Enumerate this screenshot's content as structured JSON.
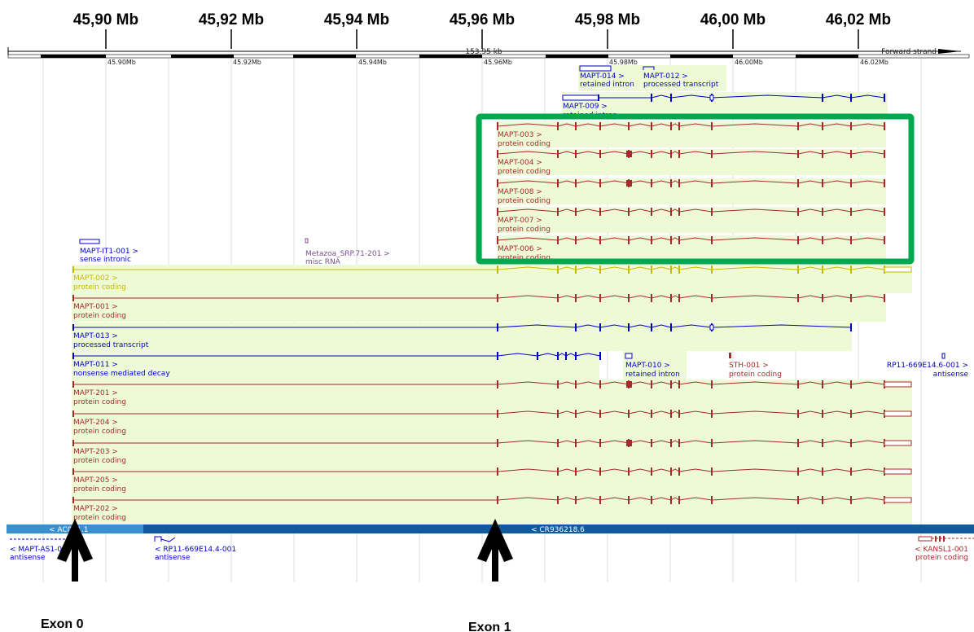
{
  "top_axis": {
    "labels": [
      "45,90 Mb",
      "45,92 Mb",
      "45,94 Mb",
      "45,96 Mb",
      "45,98 Mb",
      "46,00 Mb",
      "46,02 Mb"
    ]
  },
  "ruler": {
    "span_label": "153.95 kb",
    "strand_label": "Forward strand",
    "tick_labels": [
      "45.90Mb",
      "45.92Mb",
      "45.94Mb",
      "45.96Mb",
      "45.98Mb",
      "46.00Mb",
      "46.02Mb"
    ]
  },
  "colors": {
    "coding": "#a52a2a",
    "processed": "#0000cc",
    "yellow": "#c9b800",
    "purple": "#7a4f8f",
    "band_bg": "#eefad6",
    "contig": "#0f5a9e",
    "highlight": "#00a84f"
  },
  "transcripts": [
    {
      "id": "MAPT-014",
      "name": "MAPT-014 >",
      "biotype": "retained intron"
    },
    {
      "id": "MAPT-012",
      "name": "MAPT-012 >",
      "biotype": "processed transcript"
    },
    {
      "id": "MAPT-009",
      "name": "MAPT-009 >",
      "biotype": "retained intron"
    },
    {
      "id": "MAPT-003",
      "name": "MAPT-003 >",
      "biotype": "protein coding"
    },
    {
      "id": "MAPT-004",
      "name": "MAPT-004 >",
      "biotype": "protein coding"
    },
    {
      "id": "MAPT-008",
      "name": "MAPT-008 >",
      "biotype": "protein coding"
    },
    {
      "id": "MAPT-007",
      "name": "MAPT-007 >",
      "biotype": "protein coding"
    },
    {
      "id": "MAPT-006",
      "name": "MAPT-006 >",
      "biotype": "protein coding"
    },
    {
      "id": "MAPT-IT1-001",
      "name": "MAPT-IT1-001 >",
      "biotype": "sense intronic"
    },
    {
      "id": "Metazoa",
      "name": "Metazoa_SRP.71-201 >",
      "biotype": "misc RNA"
    },
    {
      "id": "MAPT-002",
      "name": "MAPT-002 >",
      "biotype": "protein coding"
    },
    {
      "id": "MAPT-001",
      "name": "MAPT-001 >",
      "biotype": "protein coding"
    },
    {
      "id": "MAPT-013",
      "name": "MAPT-013 >",
      "biotype": "processed transcript"
    },
    {
      "id": "MAPT-011",
      "name": "MAPT-011 >",
      "biotype": "nonsense mediated decay"
    },
    {
      "id": "MAPT-010",
      "name": "MAPT-010 >",
      "biotype": "retained intron"
    },
    {
      "id": "STH-001",
      "name": "STH-001 >",
      "biotype": "protein coding"
    },
    {
      "id": "RP11-669E14.6",
      "name": "RP11-669E14.6-001 >",
      "biotype": "antisense"
    },
    {
      "id": "MAPT-201",
      "name": "MAPT-201 >",
      "biotype": "protein coding"
    },
    {
      "id": "MAPT-204",
      "name": "MAPT-204 >",
      "biotype": "protein coding"
    },
    {
      "id": "MAPT-203",
      "name": "MAPT-203 >",
      "biotype": "protein coding"
    },
    {
      "id": "MAPT-205",
      "name": "MAPT-205 >",
      "biotype": "protein coding"
    },
    {
      "id": "MAPT-202",
      "name": "MAPT-202 >",
      "biotype": "protein coding"
    }
  ],
  "contig": {
    "left_label": "< AC091.1",
    "right_label": "< CR936218.6"
  },
  "reverse_genes": [
    {
      "name": "< MAPT-AS1-001",
      "biotype": "antisense"
    },
    {
      "name": "< RP11-669E14.4-001",
      "biotype": "antisense"
    },
    {
      "name": "< KANSL1-001",
      "biotype": "protein coding"
    }
  ],
  "annotations": {
    "exon0": "Exon 0",
    "exon1": "Exon 1"
  }
}
